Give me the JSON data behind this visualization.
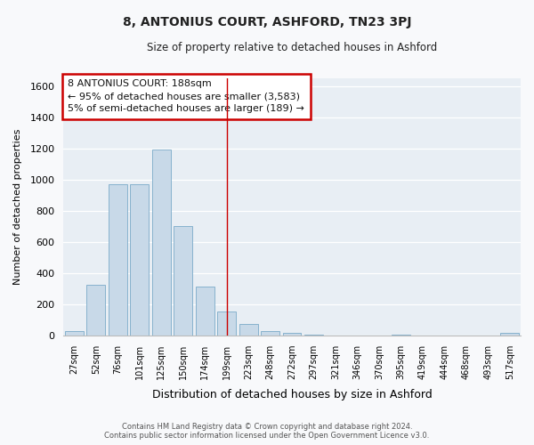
{
  "title": "8, ANTONIUS COURT, ASHFORD, TN23 3PJ",
  "subtitle": "Size of property relative to detached houses in Ashford",
  "xlabel": "Distribution of detached houses by size in Ashford",
  "ylabel": "Number of detached properties",
  "bar_color": "#c8d9e8",
  "bar_edge_color": "#7aaac8",
  "background_color": "#e8eef4",
  "plot_bg_color": "#e8eef4",
  "grid_color": "#ffffff",
  "categories": [
    "27sqm",
    "52sqm",
    "76sqm",
    "101sqm",
    "125sqm",
    "150sqm",
    "174sqm",
    "199sqm",
    "223sqm",
    "248sqm",
    "272sqm",
    "297sqm",
    "321sqm",
    "346sqm",
    "370sqm",
    "395sqm",
    "419sqm",
    "444sqm",
    "468sqm",
    "493sqm",
    "517sqm"
  ],
  "values": [
    25,
    325,
    970,
    970,
    1195,
    700,
    310,
    155,
    75,
    25,
    15,
    5,
    0,
    0,
    0,
    5,
    0,
    0,
    0,
    0,
    15
  ],
  "ylim": [
    0,
    1650
  ],
  "yticks": [
    0,
    200,
    400,
    600,
    800,
    1000,
    1200,
    1400,
    1600
  ],
  "vline_x": 7.0,
  "vline_color": "#cc0000",
  "annotation_title": "8 ANTONIUS COURT: 188sqm",
  "annotation_line1": "← 95% of detached houses are smaller (3,583)",
  "annotation_line2": "5% of semi-detached houses are larger (189) →",
  "annotation_box_color": "#ffffff",
  "annotation_box_edge": "#cc0000",
  "footer1": "Contains HM Land Registry data © Crown copyright and database right 2024.",
  "footer2": "Contains public sector information licensed under the Open Government Licence v3.0."
}
